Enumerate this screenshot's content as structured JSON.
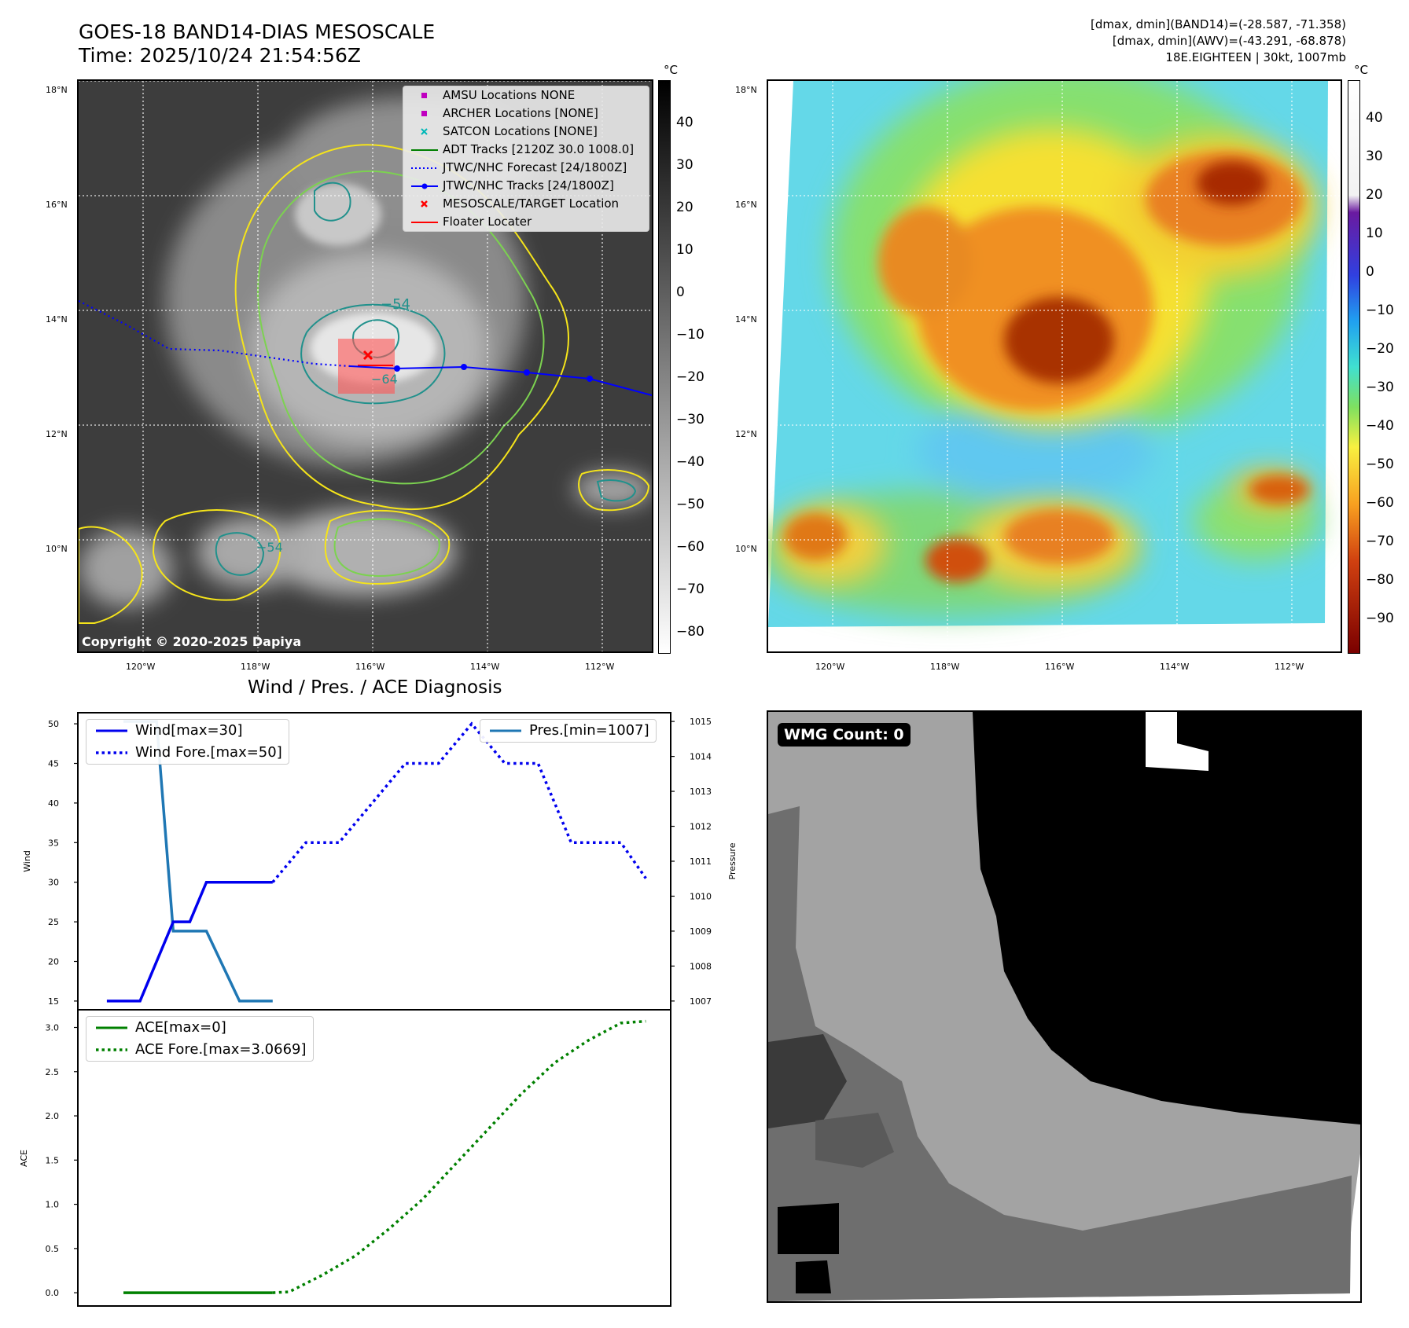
{
  "header": {
    "title_line1": "GOES-18 BAND14-DIAS MESOSCALE",
    "title_line2": "Time: 2025/10/24 21:54:56Z",
    "info_line1": "[dmax, dmin](BAND14)=(-28.587, -71.358)",
    "info_line2": "[dmax, dmin](AWV)=(-43.291, -68.878)",
    "info_line3": "18E.EIGHTEEN | 30kt, 1007mb"
  },
  "map": {
    "lat_labels": [
      "18°N",
      "16°N",
      "14°N",
      "12°N",
      "10°N"
    ],
    "lon_labels": [
      "120°W",
      "118°W",
      "116°W",
      "114°W",
      "112°W"
    ],
    "copyright": "Copyright © 2020-2025 Dapiya",
    "contour_labels": [
      "−54",
      "−64",
      "−54"
    ],
    "legend": [
      {
        "label": "AMSU Locations NONE",
        "symbol": "square",
        "color": "#c000c0"
      },
      {
        "label": "ARCHER Locations [NONE]",
        "symbol": "square",
        "color": "#c000c0"
      },
      {
        "label": "SATCON Locations [NONE]",
        "symbol": "x",
        "color": "#00b8b8"
      },
      {
        "label": "ADT Tracks [2120Z 30.0 1008.0]",
        "symbol": "line",
        "color": "#008000"
      },
      {
        "label": "JTWC/NHC Forecast [24/1800Z]",
        "symbol": "dotted",
        "color": "#0000ff"
      },
      {
        "label": "JTWC/NHC Tracks [24/1800Z]",
        "symbol": "line-dot",
        "color": "#0000ff"
      },
      {
        "label": "MESOSCALE/TARGET Location",
        "symbol": "x",
        "color": "#ff0000"
      },
      {
        "label": "Floater Locater",
        "symbol": "line",
        "color": "#ff0000"
      }
    ]
  },
  "colorbars": {
    "unit": "°C",
    "gray_ticks": [
      "40",
      "30",
      "20",
      "10",
      "0",
      "−10",
      "−20",
      "−30",
      "−40",
      "−50",
      "−60",
      "−70",
      "−80"
    ],
    "color_ticks": [
      "40",
      "30",
      "20",
      "10",
      "0",
      "−10",
      "−20",
      "−30",
      "−40",
      "−50",
      "−60",
      "−70",
      "−80",
      "−90"
    ]
  },
  "wmg": {
    "label": "WMG Count: 0"
  },
  "chart_data": [
    {
      "type": "line",
      "title": "Wind / Pres. / ACE Diagnosis",
      "ylabel": "Wind",
      "y2label": "Pressure",
      "ylim": [
        13.9,
        51.4
      ],
      "y2lim": [
        1006.75,
        1015.25
      ],
      "yticks": [
        15,
        20,
        25,
        30,
        35,
        40,
        45,
        50
      ],
      "y2ticks": [
        1007,
        1008,
        1009,
        1010,
        1011,
        1012,
        1013,
        1014,
        1015
      ],
      "series": [
        {
          "name": "Wind[max=30]",
          "axis": "left",
          "style": "solid",
          "color": "#0000ee",
          "x": [
            0,
            4,
            8,
            10,
            12,
            14,
            16,
            20
          ],
          "values": [
            15,
            15,
            25,
            25,
            30,
            30,
            30,
            30
          ]
        },
        {
          "name": "Wind Fore.[max=50]",
          "axis": "left",
          "style": "dotted",
          "color": "#0000ee",
          "x": [
            20,
            24,
            28,
            32,
            36,
            40,
            44,
            48,
            52,
            56,
            58,
            62,
            65
          ],
          "values": [
            30,
            35,
            35,
            40,
            45,
            45,
            50,
            45,
            45,
            35,
            35,
            35,
            30.5
          ]
        },
        {
          "name": "Pres.[min=1007]",
          "axis": "right",
          "style": "solid",
          "color": "#1f77b4",
          "x": [
            2,
            6,
            8,
            12,
            16,
            20
          ],
          "values": [
            1015,
            1015,
            1009,
            1009,
            1007,
            1007
          ]
        }
      ]
    },
    {
      "type": "line",
      "ylabel": "ACE",
      "ylim": [
        -0.15,
        3.2
      ],
      "yticks": [
        "0.0",
        "0.5",
        "1.0",
        "1.5",
        "2.0",
        "2.5",
        "3.0"
      ],
      "series": [
        {
          "name": "ACE[max=0]",
          "style": "solid",
          "color": "#008000",
          "x": [
            2,
            20
          ],
          "values": [
            0,
            0
          ]
        },
        {
          "name": "ACE Fore.[max=3.0669]",
          "style": "dotted",
          "color": "#008000",
          "x": [
            20,
            22,
            26,
            30,
            34,
            38,
            42,
            46,
            50,
            54,
            58,
            62,
            65
          ],
          "values": [
            0,
            0.01,
            0.2,
            0.42,
            0.72,
            1.05,
            1.45,
            1.85,
            2.25,
            2.6,
            2.85,
            3.05,
            3.07
          ]
        }
      ]
    }
  ]
}
